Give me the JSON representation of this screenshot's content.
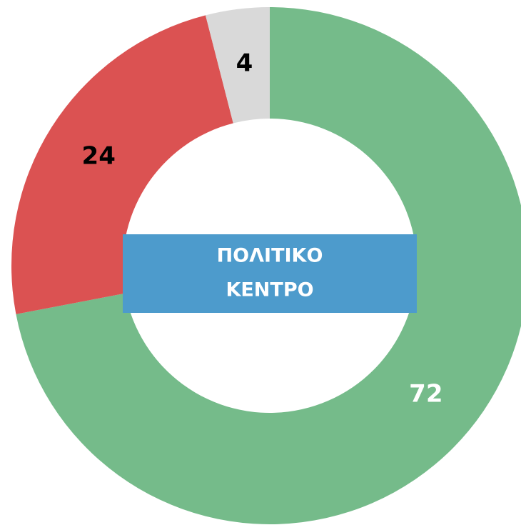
{
  "chart_data": {
    "type": "donut",
    "categories": [
      null,
      null,
      null
    ],
    "values": [
      72,
      24,
      4
    ],
    "colors": [
      "#75bb8a",
      "#db5252",
      "#d9d9d9"
    ],
    "label_colors": [
      "#ffffff",
      "#000000",
      "#000000"
    ],
    "center_label": [
      "ΠΟΛΙΤΙΚΟ",
      "ΚΕΝΤΡΟ"
    ],
    "center_color": "#4d9bcc"
  }
}
